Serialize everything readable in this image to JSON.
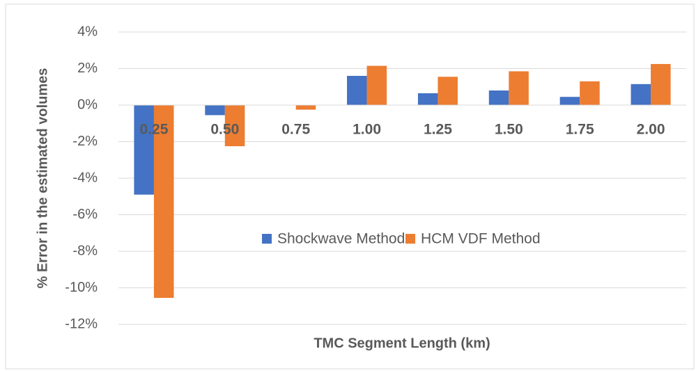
{
  "chart_data": {
    "type": "bar",
    "y_label": "% Error in the estimated volumes",
    "x_label": "TMC Segment Length (km)",
    "categories": [
      "0.25",
      "0.50",
      "0.75",
      "1.00",
      "1.25",
      "1.50",
      "1.75",
      "2.00"
    ],
    "series": [
      {
        "name": "Shockwave Method",
        "color": "#4472c4",
        "values": [
          -4.9,
          -0.55,
          0,
          1.6,
          0.65,
          0.8,
          0.45,
          1.15
        ]
      },
      {
        "name": "HCM VDF Method",
        "color": "#ed7d31",
        "values": [
          -10.55,
          -2.25,
          -0.25,
          2.15,
          1.55,
          1.85,
          1.3,
          2.25
        ]
      }
    ],
    "ylim": [
      -12,
      4
    ],
    "yticks": [
      {
        "value": -12,
        "label": "-12%"
      },
      {
        "value": -10,
        "label": "-10%"
      },
      {
        "value": -8,
        "label": "-8%"
      },
      {
        "value": -6,
        "label": "-6%"
      },
      {
        "value": -4,
        "label": "-4%"
      },
      {
        "value": -2,
        "label": "-2%"
      },
      {
        "value": 0,
        "label": "0%"
      },
      {
        "value": 2,
        "label": "2%"
      },
      {
        "value": 4,
        "label": "4%"
      }
    ],
    "grid": true
  }
}
